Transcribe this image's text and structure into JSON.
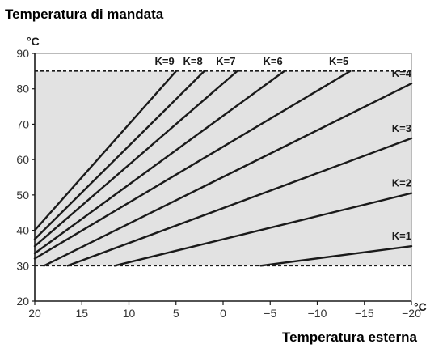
{
  "chart_data": {
    "type": "line",
    "title": "Temperatura di mandata",
    "xlabel": "Temperatura esterna",
    "y_unit": "°C",
    "x_unit": "°C",
    "xlim": [
      20,
      -20
    ],
    "ylim": [
      20,
      90
    ],
    "x_ticks": [
      20,
      15,
      10,
      5,
      0,
      -5,
      -10,
      -15,
      -20
    ],
    "y_ticks": [
      20,
      30,
      40,
      50,
      60,
      70,
      80,
      90
    ],
    "reference_lines": [
      30,
      85
    ],
    "shaded_band": [
      30,
      85
    ],
    "series": [
      {
        "name": "K=1",
        "points": [
          [
            -4,
            30
          ],
          [
            -20,
            35.5
          ]
        ]
      },
      {
        "name": "K=2",
        "points": [
          [
            11.5,
            30
          ],
          [
            -20,
            50.5
          ]
        ]
      },
      {
        "name": "K=3",
        "points": [
          [
            16.5,
            30
          ],
          [
            -20,
            66
          ]
        ]
      },
      {
        "name": "K=4",
        "points": [
          [
            19,
            30
          ],
          [
            -20,
            81.5
          ]
        ]
      },
      {
        "name": "K=5",
        "points": [
          [
            20,
            32
          ],
          [
            -13.5,
            85
          ]
        ]
      },
      {
        "name": "K=6",
        "points": [
          [
            20,
            33.5
          ],
          [
            -6.5,
            85
          ]
        ]
      },
      {
        "name": "K=7",
        "points": [
          [
            20,
            35.5
          ],
          [
            -1.5,
            85
          ]
        ]
      },
      {
        "name": "K=8",
        "points": [
          [
            20,
            37.5
          ],
          [
            2,
            85
          ]
        ]
      },
      {
        "name": "K=9",
        "points": [
          [
            20,
            40
          ],
          [
            5,
            85
          ]
        ]
      }
    ],
    "grid": false
  }
}
